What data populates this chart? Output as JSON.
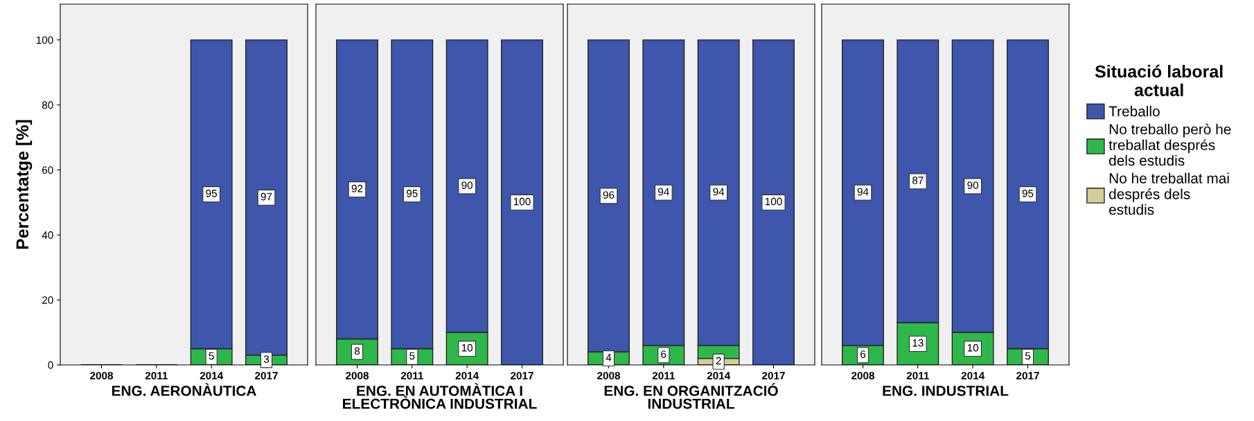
{
  "chart_data": [
    {
      "type": "bar",
      "stacked": true,
      "categories": [
        "2008",
        "2011",
        "2014",
        "2017"
      ],
      "xlabel": "ENG. AERONÀUTICA",
      "ylabel": "Percentatge [%]",
      "ylim": [
        0,
        111
      ],
      "yticks": [
        0,
        20,
        40,
        60,
        80,
        100
      ],
      "grid": false,
      "series": [
        {
          "color": "#d4cf97",
          "values": [
            0,
            0,
            0,
            0
          ],
          "value_labels": [
            null,
            null,
            null,
            null
          ]
        },
        {
          "color": "#2fb84a",
          "values": [
            0,
            0,
            5,
            3
          ],
          "value_labels": [
            null,
            null,
            "5",
            "3"
          ]
        },
        {
          "color": "#3e57ac",
          "values": [
            0,
            0,
            95,
            97
          ],
          "value_labels": [
            null,
            null,
            "95",
            "97"
          ]
        }
      ]
    },
    {
      "type": "bar",
      "stacked": true,
      "categories": [
        "2008",
        "2011",
        "2014",
        "2017"
      ],
      "xlabel": "ENG. EN AUTOMÀTICA I\nELECTRÒNICA INDUSTRIAL",
      "ylim": [
        0,
        111
      ],
      "yticks": [
        0,
        20,
        40,
        60,
        80,
        100
      ],
      "tick_labels": "x",
      "grid": false,
      "series": [
        {
          "color": "#d4cf97",
          "values": [
            0,
            0,
            0,
            0
          ],
          "value_labels": [
            null,
            null,
            null,
            null
          ]
        },
        {
          "color": "#2fb84a",
          "values": [
            8,
            5,
            10,
            0
          ],
          "value_labels": [
            "8",
            "5",
            "10",
            null
          ]
        },
        {
          "color": "#3e57ac",
          "values": [
            92,
            95,
            90,
            100
          ],
          "value_labels": [
            "92",
            "95",
            "90",
            "100"
          ]
        }
      ]
    },
    {
      "type": "bar",
      "stacked": true,
      "categories": [
        "2008",
        "2011",
        "2014",
        "2017"
      ],
      "xlabel": "ENG. EN ORGANITZACIÓ\nINDUSTRIAL",
      "ylim": [
        0,
        111
      ],
      "yticks": [
        0,
        20,
        40,
        60,
        80,
        100
      ],
      "tick_labels": "x",
      "grid": false,
      "series": [
        {
          "color": "#d4cf97",
          "values": [
            0,
            0,
            2,
            0
          ],
          "value_labels": [
            null,
            null,
            "2",
            null
          ]
        },
        {
          "color": "#2fb84a",
          "values": [
            4,
            6,
            4,
            0
          ],
          "value_labels": [
            "4",
            "6",
            null,
            null
          ]
        },
        {
          "color": "#3e57ac",
          "values": [
            96,
            94,
            94,
            100
          ],
          "value_labels": [
            "96",
            "94",
            "94",
            "100"
          ]
        }
      ]
    },
    {
      "type": "bar",
      "stacked": true,
      "categories": [
        "2008",
        "2011",
        "2014",
        "2017"
      ],
      "xlabel": "ENG. INDUSTRIAL",
      "ylim": [
        0,
        111
      ],
      "yticks": [
        0,
        20,
        40,
        60,
        80,
        100
      ],
      "tick_labels": "x",
      "grid": false,
      "legend": "right",
      "legend_title": "Situació laboral\nactual",
      "series": [
        {
          "name": "No he treballat mai\ndesprés dels\nestudis",
          "color": "#d4cf97",
          "values": [
            0,
            0,
            0,
            0
          ],
          "value_labels": [
            null,
            null,
            null,
            null
          ]
        },
        {
          "name": "No treballo però he\ntreballat després\ndels estudis",
          "color": "#2fb84a",
          "values": [
            6,
            13,
            10,
            5
          ],
          "value_labels": [
            "6",
            "13",
            "10",
            "5"
          ]
        },
        {
          "name": "Treballo",
          "color": "#3e57ac",
          "values": [
            94,
            87,
            90,
            95
          ],
          "value_labels": [
            "94",
            "87",
            "90",
            "95"
          ]
        }
      ]
    }
  ]
}
